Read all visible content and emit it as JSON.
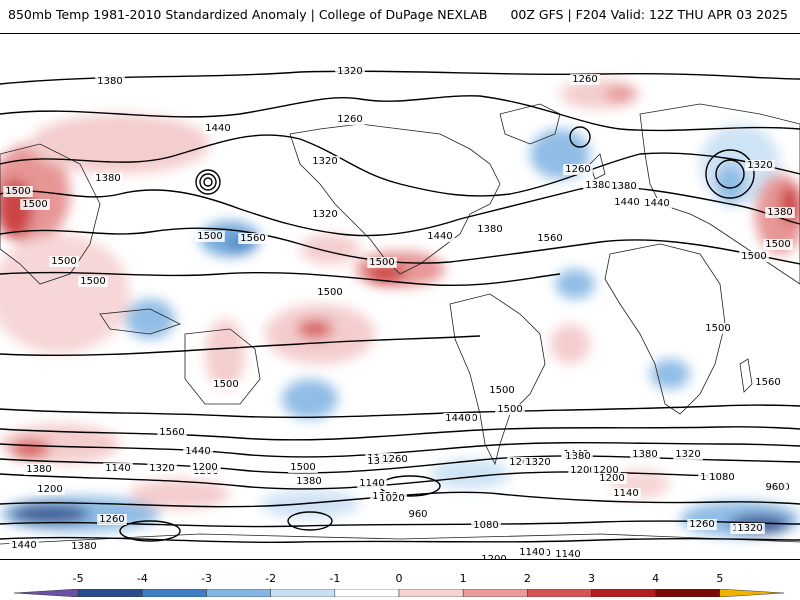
{
  "header": {
    "left_title": "850mb Temp 1981-2010 Standardized Anomaly | College of DuPage NEXLAB",
    "right_title": "00Z GFS | F204 Valid: 12Z THU APR 03 2025"
  },
  "map": {
    "field": "850mb temperature standardized anomaly with height contours",
    "contour_labels": [
      "1380",
      "1320",
      "1260",
      "1260",
      "1440",
      "1380",
      "1320",
      "1380",
      "1440",
      "1500",
      "1500",
      "1500",
      "1560",
      "1500",
      "1500",
      "1500",
      "1320",
      "1440",
      "1380",
      "1500",
      "1560",
      "1260",
      "1380",
      "1440",
      "1320",
      "1380",
      "1500",
      "1500",
      "1500",
      "1560",
      "1500",
      "1440",
      "1500",
      "1500",
      "1560",
      "1440",
      "1380",
      "1320",
      "1500",
      "1260",
      "1200",
      "1380",
      "1320",
      "1260",
      "1140",
      "1200",
      "1140",
      "1020",
      "960",
      "1080",
      "1080",
      "1140",
      "1260",
      "1320",
      "1200",
      "1200",
      "1140",
      "1080",
      "1020",
      "1200",
      "1080",
      "1140",
      "1260",
      "1320",
      "1440",
      "1380",
      "1320",
      "1200",
      "1440",
      "1380",
      "1320",
      "1260",
      "1200",
      "1140",
      "1080",
      "960",
      "1320",
      "1380",
      "1440"
    ]
  },
  "colorbar": {
    "ticks": [
      "-5",
      "-4",
      "-3",
      "-2",
      "-1",
      "0",
      "1",
      "2",
      "3",
      "4",
      "5"
    ],
    "colors": [
      "#6a51a3",
      "#2b4c8c",
      "#3f7ec2",
      "#84b6e3",
      "#c9e0f4",
      "#ffffff",
      "#f6d2d2",
      "#ea9a9a",
      "#d65353",
      "#b41d1d",
      "#7a0a0a",
      "#f0b400"
    ]
  }
}
